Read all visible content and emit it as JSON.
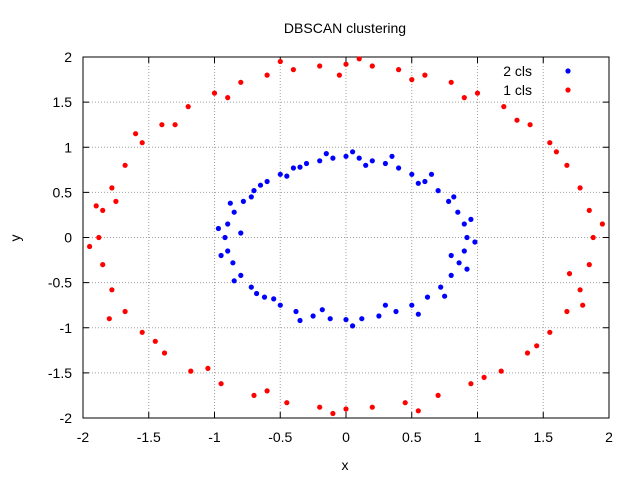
{
  "chart_data": {
    "type": "scatter",
    "title": "DBSCAN clustering",
    "xlabel": "x",
    "ylabel": "y",
    "xlim": [
      -2,
      2
    ],
    "ylim": [
      -2,
      2
    ],
    "xticks": [
      -2,
      -1.5,
      -1,
      -0.5,
      0,
      0.5,
      1,
      1.5,
      2
    ],
    "yticks": [
      -2,
      -1.5,
      -1,
      -0.5,
      0,
      0.5,
      1,
      1.5,
      2
    ],
    "xtick_labels": [
      "-2",
      "-1.5",
      "-1",
      "-0.5",
      "0",
      "0.5",
      "1",
      "1.5",
      "2"
    ],
    "ytick_labels": [
      "-2",
      "-1.5",
      "-1",
      "-0.5",
      "0",
      "0.5",
      "1",
      "1.5",
      "2"
    ],
    "grid": true,
    "legend_position": "top-right",
    "series": [
      {
        "name": "2 cls",
        "color": "#0000ff",
        "points": [
          [
            0.0,
            0.9
          ],
          [
            0.1,
            0.88
          ],
          [
            0.2,
            0.85
          ],
          [
            0.3,
            0.82
          ],
          [
            0.4,
            0.77
          ],
          [
            0.5,
            0.7
          ],
          [
            0.6,
            0.62
          ],
          [
            0.7,
            0.52
          ],
          [
            0.78,
            0.4
          ],
          [
            0.85,
            0.28
          ],
          [
            0.9,
            0.15
          ],
          [
            0.92,
            0.0
          ],
          [
            0.9,
            -0.15
          ],
          [
            0.86,
            -0.28
          ],
          [
            0.8,
            -0.42
          ],
          [
            0.72,
            -0.55
          ],
          [
            0.62,
            -0.66
          ],
          [
            0.5,
            -0.75
          ],
          [
            0.38,
            -0.82
          ],
          [
            0.25,
            -0.87
          ],
          [
            0.12,
            -0.9
          ],
          [
            0.0,
            -0.91
          ],
          [
            -0.12,
            -0.9
          ],
          [
            -0.25,
            -0.87
          ],
          [
            -0.38,
            -0.82
          ],
          [
            -0.5,
            -0.75
          ],
          [
            -0.62,
            -0.66
          ],
          [
            -0.72,
            -0.55
          ],
          [
            -0.8,
            -0.42
          ],
          [
            -0.86,
            -0.28
          ],
          [
            -0.9,
            -0.15
          ],
          [
            -0.92,
            0.0
          ],
          [
            -0.9,
            0.15
          ],
          [
            -0.85,
            0.28
          ],
          [
            -0.78,
            0.4
          ],
          [
            -0.7,
            0.52
          ],
          [
            -0.6,
            0.62
          ],
          [
            -0.5,
            0.7
          ],
          [
            -0.4,
            0.77
          ],
          [
            -0.3,
            0.82
          ],
          [
            -0.2,
            0.85
          ],
          [
            -0.1,
            0.88
          ],
          [
            0.05,
            0.95
          ],
          [
            0.15,
            0.8
          ],
          [
            0.35,
            0.9
          ],
          [
            0.55,
            0.6
          ],
          [
            0.65,
            0.7
          ],
          [
            0.82,
            0.45
          ],
          [
            0.95,
            0.2
          ],
          [
            0.98,
            -0.05
          ],
          [
            0.8,
            -0.2
          ],
          [
            0.92,
            -0.35
          ],
          [
            0.75,
            -0.65
          ],
          [
            0.55,
            -0.85
          ],
          [
            0.3,
            -0.75
          ],
          [
            0.05,
            -0.98
          ],
          [
            -0.18,
            -0.8
          ],
          [
            -0.35,
            -0.92
          ],
          [
            -0.55,
            -0.68
          ],
          [
            -0.68,
            -0.62
          ],
          [
            -0.85,
            -0.48
          ],
          [
            -0.95,
            -0.2
          ],
          [
            -0.8,
            0.05
          ],
          [
            -0.97,
            0.1
          ],
          [
            -0.88,
            0.38
          ],
          [
            -0.72,
            0.45
          ],
          [
            -0.65,
            0.58
          ],
          [
            -0.45,
            0.68
          ],
          [
            -0.35,
            0.78
          ],
          [
            -0.15,
            0.93
          ]
        ]
      },
      {
        "name": "1 cls",
        "color": "#ff0000",
        "points": [
          [
            0.0,
            1.92
          ],
          [
            0.2,
            1.9
          ],
          [
            0.4,
            1.86
          ],
          [
            0.6,
            1.8
          ],
          [
            0.8,
            1.72
          ],
          [
            1.0,
            1.6
          ],
          [
            1.2,
            1.45
          ],
          [
            1.4,
            1.25
          ],
          [
            1.55,
            1.05
          ],
          [
            1.68,
            0.8
          ],
          [
            1.78,
            0.55
          ],
          [
            1.85,
            0.3
          ],
          [
            1.88,
            0.0
          ],
          [
            1.85,
            -0.3
          ],
          [
            1.78,
            -0.58
          ],
          [
            1.68,
            -0.82
          ],
          [
            1.55,
            -1.05
          ],
          [
            1.38,
            -1.28
          ],
          [
            1.18,
            -1.48
          ],
          [
            0.95,
            -1.62
          ],
          [
            0.7,
            -1.75
          ],
          [
            0.45,
            -1.83
          ],
          [
            0.2,
            -1.88
          ],
          [
            0.0,
            -1.9
          ],
          [
            -0.2,
            -1.88
          ],
          [
            -0.45,
            -1.83
          ],
          [
            -0.7,
            -1.75
          ],
          [
            -0.95,
            -1.62
          ],
          [
            -1.18,
            -1.48
          ],
          [
            -1.38,
            -1.28
          ],
          [
            -1.55,
            -1.05
          ],
          [
            -1.68,
            -0.82
          ],
          [
            -1.78,
            -0.58
          ],
          [
            -1.85,
            -0.3
          ],
          [
            -1.88,
            0.0
          ],
          [
            -1.85,
            0.3
          ],
          [
            -1.78,
            0.55
          ],
          [
            -1.68,
            0.8
          ],
          [
            -1.55,
            1.05
          ],
          [
            -1.4,
            1.25
          ],
          [
            -1.2,
            1.45
          ],
          [
            -1.0,
            1.6
          ],
          [
            -0.8,
            1.72
          ],
          [
            -0.6,
            1.8
          ],
          [
            -0.4,
            1.86
          ],
          [
            -0.2,
            1.9
          ],
          [
            0.1,
            1.98
          ],
          [
            0.5,
            1.75
          ],
          [
            0.9,
            1.55
          ],
          [
            1.3,
            1.3
          ],
          [
            1.6,
            0.95
          ],
          [
            1.95,
            0.15
          ],
          [
            1.7,
            -0.4
          ],
          [
            1.8,
            -0.75
          ],
          [
            1.45,
            -1.2
          ],
          [
            1.05,
            -1.55
          ],
          [
            0.55,
            -1.92
          ],
          [
            -0.1,
            -1.95
          ],
          [
            -0.6,
            -1.7
          ],
          [
            -1.05,
            -1.45
          ],
          [
            -1.45,
            -1.15
          ],
          [
            -1.8,
            -0.9
          ],
          [
            -1.95,
            -0.1
          ],
          [
            -1.75,
            0.4
          ],
          [
            -1.9,
            0.35
          ],
          [
            -1.6,
            1.15
          ],
          [
            -1.3,
            1.25
          ],
          [
            -0.9,
            1.55
          ],
          [
            -0.5,
            1.95
          ],
          [
            -0.05,
            1.8
          ]
        ]
      }
    ]
  }
}
